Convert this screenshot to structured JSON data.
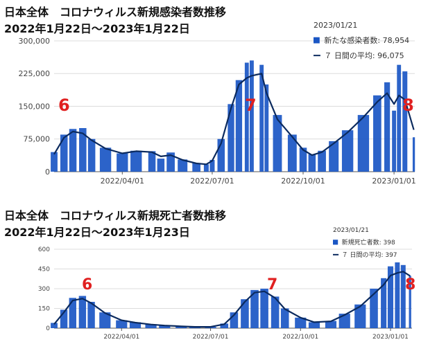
{
  "chart_data": [
    {
      "type": "bar",
      "title": "日本全体　コロナウィルス新規感染者数推移",
      "subtitle": "2022年1月22日〜2023年1月22日",
      "legend": {
        "date": "2023/01/21",
        "bar_label": "新たな感染者数: 78,954",
        "line_label": "７ 日間の平均: 96,075",
        "placement": "top-right"
      },
      "x_tick_labels": [
        "2022/04/01",
        "2022/07/01",
        "2022/10/01",
        "2023/01/01"
      ],
      "y_tick_labels": [
        "0",
        "75,000",
        "150,000",
        "225,000",
        "300,000"
      ],
      "ylim": [
        0,
        300000
      ],
      "grid": true,
      "annotations": [
        "6",
        "7",
        "8"
      ],
      "colors": {
        "bar": "#1a56c4",
        "line": "#0b2a5e",
        "annotation": "#e02020"
      },
      "series": [
        {
          "name": "新たな感染者数",
          "kind": "bar",
          "x": [
            "2022-01-22",
            "2022-02-01",
            "2022-02-10",
            "2022-02-20",
            "2022-03-01",
            "2022-03-15",
            "2022-04-01",
            "2022-04-15",
            "2022-05-01",
            "2022-05-10",
            "2022-05-20",
            "2022-06-01",
            "2022-06-15",
            "2022-06-25",
            "2022-07-01",
            "2022-07-10",
            "2022-07-20",
            "2022-07-28",
            "2022-08-05",
            "2022-08-10",
            "2022-08-20",
            "2022-08-25",
            "2022-09-05",
            "2022-09-20",
            "2022-10-01",
            "2022-10-10",
            "2022-10-20",
            "2022-11-01",
            "2022-11-15",
            "2022-12-01",
            "2022-12-15",
            "2022-12-25",
            "2023-01-01",
            "2023-01-06",
            "2023-01-12",
            "2023-01-21"
          ],
          "values": [
            45000,
            85000,
            98000,
            100000,
            75000,
            55000,
            42000,
            48000,
            47000,
            30000,
            44000,
            28000,
            20000,
            17000,
            27000,
            75000,
            155000,
            210000,
            250000,
            255000,
            245000,
            200000,
            130000,
            85000,
            55000,
            40000,
            48000,
            70000,
            95000,
            130000,
            175000,
            205000,
            140000,
            245000,
            230000,
            78954
          ]
        },
        {
          "name": "７ 日間の平均",
          "kind": "line",
          "x": [
            "2022-01-22",
            "2022-02-01",
            "2022-02-10",
            "2022-02-20",
            "2022-03-01",
            "2022-03-15",
            "2022-04-01",
            "2022-04-15",
            "2022-05-01",
            "2022-05-10",
            "2022-05-20",
            "2022-06-01",
            "2022-06-15",
            "2022-06-25",
            "2022-07-01",
            "2022-07-10",
            "2022-07-20",
            "2022-07-28",
            "2022-08-05",
            "2022-08-10",
            "2022-08-20",
            "2022-08-25",
            "2022-09-05",
            "2022-09-20",
            "2022-10-01",
            "2022-10-10",
            "2022-10-20",
            "2022-11-01",
            "2022-11-15",
            "2022-12-01",
            "2022-12-15",
            "2022-12-25",
            "2023-01-01",
            "2023-01-06",
            "2023-01-12",
            "2023-01-21"
          ],
          "values": [
            40000,
            78000,
            92000,
            88000,
            72000,
            53000,
            42000,
            47000,
            45000,
            35000,
            38000,
            27000,
            19000,
            17000,
            25000,
            65000,
            145000,
            200000,
            215000,
            220000,
            225000,
            180000,
            120000,
            80000,
            50000,
            38000,
            45000,
            65000,
            90000,
            125000,
            160000,
            180000,
            155000,
            175000,
            165000,
            96075
          ]
        }
      ]
    },
    {
      "type": "bar",
      "title": "日本全体　コロナウィルス新規死亡者数推移",
      "subtitle": "2022年1月22日〜2023年1月23日",
      "legend": {
        "date": "2023/01/21",
        "bar_label": "新規死亡者数: 398",
        "line_label": "７ 日間の平均: 397",
        "placement": "top-right"
      },
      "x_tick_labels": [
        "2022/04/01",
        "2022/07/01",
        "2022/10/01",
        "2023/01/01"
      ],
      "y_tick_labels": [
        "0",
        "150",
        "300",
        "450",
        "600"
      ],
      "ylim": [
        0,
        600
      ],
      "grid": true,
      "annotations": [
        "6",
        "7",
        "8"
      ],
      "colors": {
        "bar": "#1a56c4",
        "line": "#0b2a5e",
        "annotation": "#e02020"
      },
      "series": [
        {
          "name": "新規死亡者数",
          "kind": "bar",
          "x": [
            "2022-01-22",
            "2022-02-01",
            "2022-02-10",
            "2022-02-20",
            "2022-03-01",
            "2022-03-15",
            "2022-04-01",
            "2022-04-15",
            "2022-05-01",
            "2022-05-15",
            "2022-06-01",
            "2022-06-15",
            "2022-07-01",
            "2022-07-15",
            "2022-07-25",
            "2022-08-05",
            "2022-08-15",
            "2022-08-25",
            "2022-09-05",
            "2022-09-15",
            "2022-10-01",
            "2022-10-15",
            "2022-11-01",
            "2022-11-15",
            "2022-12-01",
            "2022-12-15",
            "2022-12-25",
            "2023-01-01",
            "2023-01-08",
            "2023-01-14",
            "2023-01-21"
          ],
          "values": [
            40,
            140,
            230,
            245,
            200,
            120,
            60,
            45,
            30,
            22,
            15,
            10,
            10,
            35,
            120,
            220,
            290,
            300,
            240,
            150,
            80,
            45,
            55,
            110,
            180,
            300,
            380,
            470,
            500,
            480,
            398
          ]
        },
        {
          "name": "７ 日間の平均",
          "kind": "line",
          "x": [
            "2022-01-22",
            "2022-02-01",
            "2022-02-10",
            "2022-02-20",
            "2022-03-01",
            "2022-03-15",
            "2022-04-01",
            "2022-04-15",
            "2022-05-01",
            "2022-05-15",
            "2022-06-01",
            "2022-06-15",
            "2022-07-01",
            "2022-07-15",
            "2022-07-25",
            "2022-08-05",
            "2022-08-15",
            "2022-08-25",
            "2022-09-05",
            "2022-09-15",
            "2022-10-01",
            "2022-10-15",
            "2022-11-01",
            "2022-11-15",
            "2022-12-01",
            "2022-12-15",
            "2022-12-25",
            "2023-01-01",
            "2023-01-08",
            "2023-01-14",
            "2023-01-21"
          ],
          "values": [
            30,
            120,
            210,
            225,
            190,
            115,
            60,
            42,
            28,
            20,
            14,
            10,
            10,
            30,
            100,
            200,
            270,
            280,
            230,
            145,
            80,
            45,
            52,
            100,
            165,
            260,
            330,
            400,
            420,
            430,
            397
          ]
        }
      ]
    }
  ]
}
